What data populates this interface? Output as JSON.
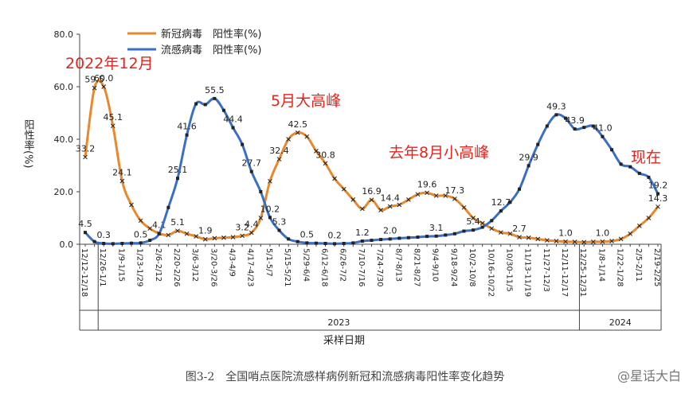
{
  "chart_data": {
    "type": "line",
    "y_label": "阳性率(%)",
    "x_label": "采样日期",
    "caption": "图3-2　全国哨点医院流感样病例新冠和流感病毒阳性率变化趋势",
    "watermark": "@星话大白",
    "years": [
      "2023",
      "2024"
    ],
    "annotations": [
      "2022年12月",
      "5月大高峰",
      "去年8月小高峰",
      "现在"
    ],
    "ylim": [
      0,
      80
    ],
    "yticks": [
      {
        "value": 0,
        "label": "0.0"
      },
      {
        "value": 20,
        "label": "20.0"
      },
      {
        "value": 40,
        "label": "40.0"
      },
      {
        "value": 60,
        "label": "60.0"
      },
      {
        "value": 80,
        "label": "80.0"
      }
    ],
    "legend": "upper left",
    "categories": [
      "12/12-12/18",
      null,
      "12/26-1/1",
      null,
      "1/9-1/15",
      null,
      "1/23-1/29",
      null,
      "2/6-2/12",
      null,
      "2/20-2/26",
      null,
      "3/6-3/12",
      null,
      "3/20-3/26",
      null,
      "4/3-4/9",
      null,
      "4/17-4/23",
      null,
      "5/1-5/7",
      null,
      "5/15-5/21",
      null,
      "5/29-6/4",
      null,
      "6/12-6/18",
      null,
      "6/26-7/2",
      null,
      "7/10-7/16",
      null,
      "7/24-7/30",
      null,
      "8/7-8/13",
      null,
      "8/21-8/27",
      null,
      "9/4-9/10",
      null,
      "9/18-9/24",
      null,
      "10/2-10/8",
      null,
      "10/16-10/22",
      null,
      "10/30-11/5",
      null,
      "11/13-11/19",
      null,
      "11/27-12/3",
      null,
      "12/11-12/17",
      null,
      "12/25-12/31",
      null,
      "1/8-1/14",
      null,
      "1/22-1/28",
      null,
      "2/5-2/11",
      null,
      "2/19-2/25"
    ],
    "series": [
      {
        "name": "新冠病毒　阳性率(%)",
        "color": "#e8892e",
        "marker": "x",
        "values": [
          33.2,
          59.5,
          60.0,
          45.1,
          24.1,
          15,
          9,
          6,
          4.1,
          3.5,
          5.1,
          4,
          3,
          1.9,
          2.3,
          2.5,
          2.7,
          3.2,
          4.4,
          10,
          24,
          32.4,
          40,
          42.5,
          41,
          35.5,
          30.8,
          25,
          21,
          17,
          13.5,
          16.9,
          13,
          14.4,
          15,
          17,
          19,
          19.6,
          18.5,
          18.5,
          17.3,
          14,
          10,
          8,
          6,
          4.5,
          4,
          2.7,
          2.5,
          2,
          1.5,
          1.2,
          1.0,
          0.9,
          0.8,
          0.9,
          1.0,
          1.2,
          2,
          4,
          7,
          10,
          14.3
        ],
        "value_labels": [
          "33.2",
          "59.5",
          "60.0",
          "45.1",
          "24.1",
          null,
          null,
          null,
          "4.1",
          null,
          "5.1",
          null,
          null,
          "1.9",
          null,
          null,
          null,
          "3.2",
          "4.4",
          null,
          null,
          "32.4",
          null,
          "42.5",
          null,
          null,
          "30.8",
          null,
          null,
          null,
          null,
          "16.9",
          null,
          "14.4",
          null,
          null,
          null,
          "19.6",
          null,
          null,
          "17.3",
          null,
          null,
          null,
          null,
          null,
          null,
          "2.7",
          null,
          null,
          null,
          null,
          "1.0",
          null,
          null,
          null,
          "1.0",
          null,
          null,
          null,
          null,
          null,
          "14.3"
        ]
      },
      {
        "name": "流感病毒　阳性率(%)",
        "color": "#3a6fc4",
        "marker": "square",
        "values": [
          4.5,
          1.0,
          0.3,
          0.2,
          0.3,
          0.4,
          0.5,
          1.5,
          4,
          14,
          25.1,
          41.6,
          53.5,
          53.2,
          55.5,
          51,
          44.4,
          38,
          27.7,
          20,
          10.2,
          5.3,
          2,
          1,
          0.5,
          0.4,
          0.3,
          0.2,
          0.3,
          0.5,
          1.2,
          1.5,
          1.8,
          2.0,
          2.3,
          2.5,
          2.7,
          3.0,
          3.1,
          3.5,
          4.0,
          5,
          5.4,
          6.5,
          9,
          12.7,
          16,
          21,
          29.9,
          38,
          45,
          49.3,
          48,
          43.9,
          44.5,
          45,
          41.0,
          36,
          30.5,
          29.5,
          27,
          25.5,
          19.2
        ],
        "value_labels": [
          "4.5",
          null,
          "0.3",
          null,
          null,
          null,
          "0.5",
          null,
          null,
          null,
          "25.1",
          "41.6",
          null,
          null,
          "55.5",
          null,
          "44.4",
          null,
          "27.7",
          null,
          "10.2",
          "5.3",
          null,
          null,
          "0.5",
          null,
          null,
          "0.2",
          null,
          null,
          "1.2",
          null,
          null,
          "2.0",
          null,
          null,
          null,
          null,
          "3.1",
          null,
          null,
          null,
          "5.4",
          null,
          null,
          "12.7",
          null,
          null,
          "29.9",
          null,
          null,
          "49.3",
          null,
          "43.9",
          null,
          null,
          "41.0",
          null,
          null,
          null,
          null,
          null,
          "19.2"
        ]
      }
    ]
  }
}
